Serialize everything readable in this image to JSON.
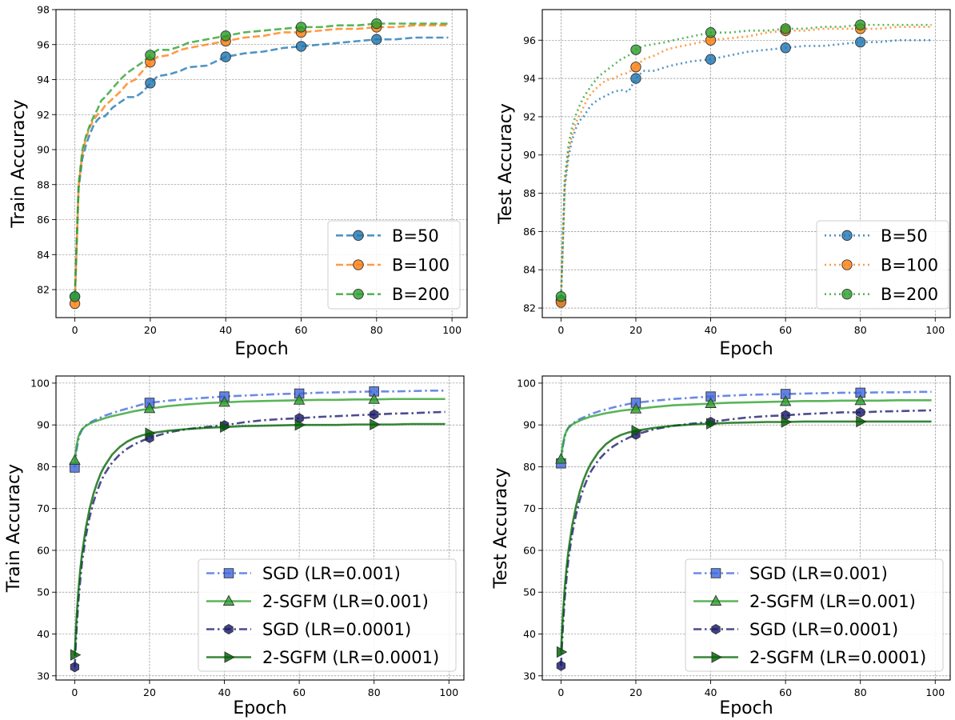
{
  "chart_data": [
    {
      "type": "line",
      "xlabel": "Epoch",
      "ylabel": "Train Accuracy",
      "xlim": [
        -5,
        104
      ],
      "ylim": [
        80.4,
        98
      ],
      "xticks": [
        0,
        20,
        40,
        60,
        80,
        100
      ],
      "yticks": [
        82,
        84,
        86,
        88,
        90,
        92,
        94,
        96,
        98
      ],
      "grid": true,
      "legend_position": "lower right",
      "x": [
        0,
        1,
        2,
        3,
        4,
        5,
        6,
        7,
        8,
        10,
        12,
        14,
        16,
        18,
        20,
        22,
        25,
        28,
        30,
        35,
        40,
        45,
        50,
        55,
        60,
        65,
        70,
        75,
        80,
        85,
        90,
        95,
        99
      ],
      "series": [
        {
          "name": "B=50",
          "color": "#1f77b4",
          "line_style": "dashed",
          "marker": "circle",
          "values": [
            81.6,
            87.8,
            89.5,
            90.3,
            90.9,
            91.4,
            91.7,
            91.9,
            91.9,
            92.4,
            92.7,
            93.0,
            93.0,
            93.3,
            93.8,
            94.2,
            94.3,
            94.5,
            94.7,
            94.8,
            95.3,
            95.5,
            95.6,
            95.8,
            95.9,
            96.0,
            96.1,
            96.2,
            96.3,
            96.3,
            96.4,
            96.4,
            96.4
          ]
        },
        {
          "name": "B=100",
          "color": "#ff7f0e",
          "line_style": "dashed",
          "marker": "circle",
          "values": [
            81.2,
            87.9,
            89.8,
            90.7,
            91.3,
            91.7,
            92.0,
            92.2,
            92.5,
            92.9,
            93.3,
            93.8,
            94.0,
            94.5,
            95.0,
            95.3,
            95.4,
            95.7,
            95.8,
            96.0,
            96.2,
            96.4,
            96.5,
            96.7,
            96.7,
            96.8,
            96.9,
            96.9,
            97.0,
            97.0,
            97.1,
            97.1,
            97.1
          ]
        },
        {
          "name": "B=200",
          "color": "#2ca02c",
          "line_style": "dashed",
          "marker": "circle",
          "values": [
            81.6,
            88.0,
            90.0,
            90.8,
            91.4,
            91.9,
            92.3,
            92.8,
            93.0,
            93.5,
            94.0,
            94.4,
            94.7,
            95.0,
            95.4,
            95.7,
            95.7,
            95.9,
            96.1,
            96.3,
            96.5,
            96.7,
            96.8,
            96.9,
            97.0,
            97.0,
            97.1,
            97.1,
            97.2,
            97.2,
            97.2,
            97.2,
            97.2
          ]
        }
      ],
      "marker_epochs": [
        0,
        20,
        40,
        60,
        80
      ]
    },
    {
      "type": "line",
      "xlabel": "Epoch",
      "ylabel": "Test Accuracy",
      "xlim": [
        -5,
        104
      ],
      "ylim": [
        81.5,
        97.6
      ],
      "xticks": [
        0,
        20,
        40,
        60,
        80,
        100
      ],
      "yticks": [
        82,
        84,
        86,
        88,
        90,
        92,
        94,
        96
      ],
      "grid": true,
      "legend_position": "lower right",
      "x": [
        0,
        1,
        2,
        3,
        4,
        5,
        6,
        7,
        8,
        10,
        12,
        14,
        16,
        18,
        20,
        22,
        25,
        28,
        30,
        35,
        40,
        45,
        50,
        55,
        60,
        65,
        70,
        75,
        80,
        85,
        90,
        95,
        99
      ],
      "series": [
        {
          "name": "B=50",
          "color": "#1f77b4",
          "line_style": "dotted",
          "marker": "circle",
          "values": [
            82.4,
            88.3,
            89.9,
            90.8,
            91.4,
            91.8,
            92.0,
            92.3,
            92.6,
            92.9,
            93.1,
            93.3,
            93.4,
            93.3,
            94.0,
            94.4,
            94.4,
            94.6,
            94.7,
            94.9,
            95.0,
            95.2,
            95.4,
            95.5,
            95.6,
            95.7,
            95.7,
            95.8,
            95.9,
            95.9,
            96.0,
            96.0,
            96.0
          ]
        },
        {
          "name": "B=100",
          "color": "#ff7f0e",
          "line_style": "dotted",
          "marker": "circle",
          "values": [
            82.3,
            88.5,
            90.2,
            91.1,
            91.7,
            92.1,
            92.5,
            92.9,
            93.2,
            93.6,
            93.9,
            94.0,
            94.2,
            94.3,
            94.6,
            95.0,
            95.2,
            95.5,
            95.6,
            95.8,
            96.0,
            96.1,
            96.2,
            96.4,
            96.5,
            96.5,
            96.6,
            96.6,
            96.6,
            96.6,
            96.7,
            96.7,
            96.7
          ]
        },
        {
          "name": "B=200",
          "color": "#2ca02c",
          "line_style": "dotted",
          "marker": "circle",
          "values": [
            82.6,
            88.8,
            90.5,
            91.5,
            92.1,
            92.6,
            93.0,
            93.3,
            93.6,
            94.1,
            94.4,
            94.7,
            95.0,
            95.2,
            95.5,
            95.7,
            95.8,
            95.9,
            96.0,
            96.2,
            96.4,
            96.4,
            96.5,
            96.5,
            96.6,
            96.6,
            96.7,
            96.7,
            96.8,
            96.8,
            96.8,
            96.8,
            96.8
          ]
        }
      ],
      "marker_epochs": [
        0,
        20,
        40,
        60,
        80
      ]
    },
    {
      "type": "line",
      "xlabel": "Epoch",
      "ylabel": "Train Accuracy",
      "xlim": [
        -5,
        104
      ],
      "ylim": [
        29,
        101.7
      ],
      "xticks": [
        0,
        20,
        40,
        60,
        80,
        100
      ],
      "yticks": [
        30,
        40,
        50,
        60,
        70,
        80,
        90,
        100
      ],
      "grid": true,
      "legend_position": "lower right",
      "x": [
        0,
        0.5,
        1,
        1.5,
        2,
        3,
        4,
        5,
        6,
        7,
        8,
        10,
        12,
        14,
        16,
        18,
        20,
        25,
        30,
        35,
        40,
        45,
        50,
        55,
        60,
        65,
        70,
        75,
        80,
        85,
        90,
        95,
        99
      ],
      "series": [
        {
          "name": "SGD (LR=0.001)",
          "color": "#4169e1",
          "line_style": "dashdot",
          "marker": "square",
          "values": [
            79.8,
            84.0,
            86.5,
            88.0,
            88.9,
            89.9,
            90.5,
            91.0,
            91.4,
            91.8,
            92.2,
            92.8,
            93.4,
            93.9,
            94.4,
            94.9,
            95.3,
            95.8,
            96.2,
            96.5,
            96.8,
            97.0,
            97.2,
            97.4,
            97.5,
            97.7,
            97.8,
            97.9,
            98.0,
            98.0,
            98.1,
            98.2,
            98.2
          ]
        },
        {
          "name": "2-SGFM (LR=0.001)",
          "color": "#2ca02c",
          "line_style": "solid",
          "marker": "triangle",
          "values": [
            81.5,
            85.0,
            87.2,
            88.3,
            89.0,
            89.8,
            90.3,
            90.7,
            91.0,
            91.3,
            91.6,
            92.1,
            92.5,
            92.9,
            93.3,
            93.6,
            93.9,
            94.5,
            94.9,
            95.2,
            95.4,
            95.6,
            95.7,
            95.8,
            95.9,
            96.0,
            96.0,
            96.1,
            96.1,
            96.2,
            96.2,
            96.2,
            96.2
          ]
        },
        {
          "name": "SGD (LR=0.0001)",
          "color": "#191970",
          "line_style": "dashdot",
          "marker": "hexagon",
          "values": [
            32.1,
            41.0,
            48.0,
            53.0,
            57.5,
            63.5,
            68.0,
            71.5,
            74.2,
            76.5,
            78.3,
            81.0,
            82.9,
            84.3,
            85.4,
            86.2,
            86.9,
            88.2,
            89.0,
            89.5,
            89.9,
            90.6,
            91.1,
            91.4,
            91.6,
            91.9,
            92.1,
            92.3,
            92.5,
            92.7,
            92.8,
            93.0,
            93.1
          ]
        },
        {
          "name": "2-SGFM (LR=0.0001)",
          "color": "#006400",
          "line_style": "solid",
          "marker": "triangle-right",
          "values": [
            35.0,
            44.0,
            50.5,
            55.5,
            59.5,
            65.5,
            70.0,
            73.5,
            76.2,
            78.5,
            80.2,
            82.9,
            84.7,
            86.0,
            86.9,
            87.5,
            88.0,
            88.6,
            89.0,
            89.3,
            89.5,
            89.7,
            89.8,
            89.9,
            90.0,
            90.0,
            90.0,
            90.1,
            90.1,
            90.1,
            90.2,
            90.2,
            90.2
          ]
        }
      ],
      "marker_epochs": [
        0,
        20,
        40,
        60,
        80
      ]
    },
    {
      "type": "line",
      "xlabel": "Epoch",
      "ylabel": "Test Accuracy",
      "xlim": [
        -5,
        104
      ],
      "ylim": [
        29,
        101.7
      ],
      "xticks": [
        0,
        20,
        40,
        60,
        80,
        100
      ],
      "yticks": [
        30,
        40,
        50,
        60,
        70,
        80,
        90,
        100
      ],
      "grid": true,
      "legend_position": "lower right",
      "x": [
        0,
        0.5,
        1,
        1.5,
        2,
        3,
        4,
        5,
        6,
        7,
        8,
        10,
        12,
        14,
        16,
        18,
        20,
        25,
        30,
        35,
        40,
        45,
        50,
        55,
        60,
        65,
        70,
        75,
        80,
        85,
        90,
        95,
        99
      ],
      "series": [
        {
          "name": "SGD (LR=0.001)",
          "color": "#4169e1",
          "line_style": "dashdot",
          "marker": "square",
          "values": [
            80.8,
            84.8,
            87.2,
            88.6,
            89.4,
            90.3,
            90.9,
            91.4,
            91.8,
            92.2,
            92.6,
            93.2,
            93.7,
            94.2,
            94.6,
            95.0,
            95.3,
            95.8,
            96.2,
            96.5,
            96.8,
            97.0,
            97.2,
            97.3,
            97.4,
            97.5,
            97.6,
            97.7,
            97.7,
            97.8,
            97.8,
            97.9,
            97.9
          ]
        },
        {
          "name": "2-SGFM (LR=0.001)",
          "color": "#2ca02c",
          "line_style": "solid",
          "marker": "triangle",
          "values": [
            81.8,
            85.5,
            87.5,
            88.6,
            89.3,
            90.1,
            90.6,
            91.0,
            91.4,
            91.7,
            92.0,
            92.4,
            92.8,
            93.1,
            93.4,
            93.6,
            93.8,
            94.3,
            94.7,
            94.9,
            95.1,
            95.3,
            95.4,
            95.5,
            95.6,
            95.7,
            95.7,
            95.8,
            95.8,
            95.8,
            95.9,
            95.9,
            95.9
          ]
        },
        {
          "name": "SGD (LR=0.0001)",
          "color": "#191970",
          "line_style": "dashdot",
          "marker": "hexagon",
          "values": [
            32.4,
            41.5,
            48.5,
            53.5,
            58.0,
            64.0,
            68.5,
            72.0,
            74.8,
            77.0,
            78.9,
            81.6,
            83.5,
            84.9,
            86.0,
            86.9,
            87.7,
            89.0,
            89.8,
            90.3,
            90.7,
            91.3,
            91.8,
            92.1,
            92.3,
            92.6,
            92.8,
            93.0,
            93.0,
            93.2,
            93.3,
            93.4,
            93.5
          ]
        },
        {
          "name": "2-SGFM (LR=0.0001)",
          "color": "#006400",
          "line_style": "solid",
          "marker": "triangle-right",
          "values": [
            35.7,
            44.5,
            51.0,
            56.0,
            60.0,
            66.0,
            70.5,
            74.0,
            76.8,
            79.0,
            80.8,
            83.5,
            85.4,
            86.7,
            87.6,
            88.2,
            88.6,
            89.3,
            89.8,
            90.1,
            90.3,
            90.5,
            90.6,
            90.7,
            90.7,
            90.8,
            90.8,
            90.8,
            90.8,
            90.8,
            90.8,
            90.8,
            90.8
          ]
        }
      ],
      "marker_epochs": [
        0,
        20,
        40,
        60,
        80
      ]
    }
  ]
}
